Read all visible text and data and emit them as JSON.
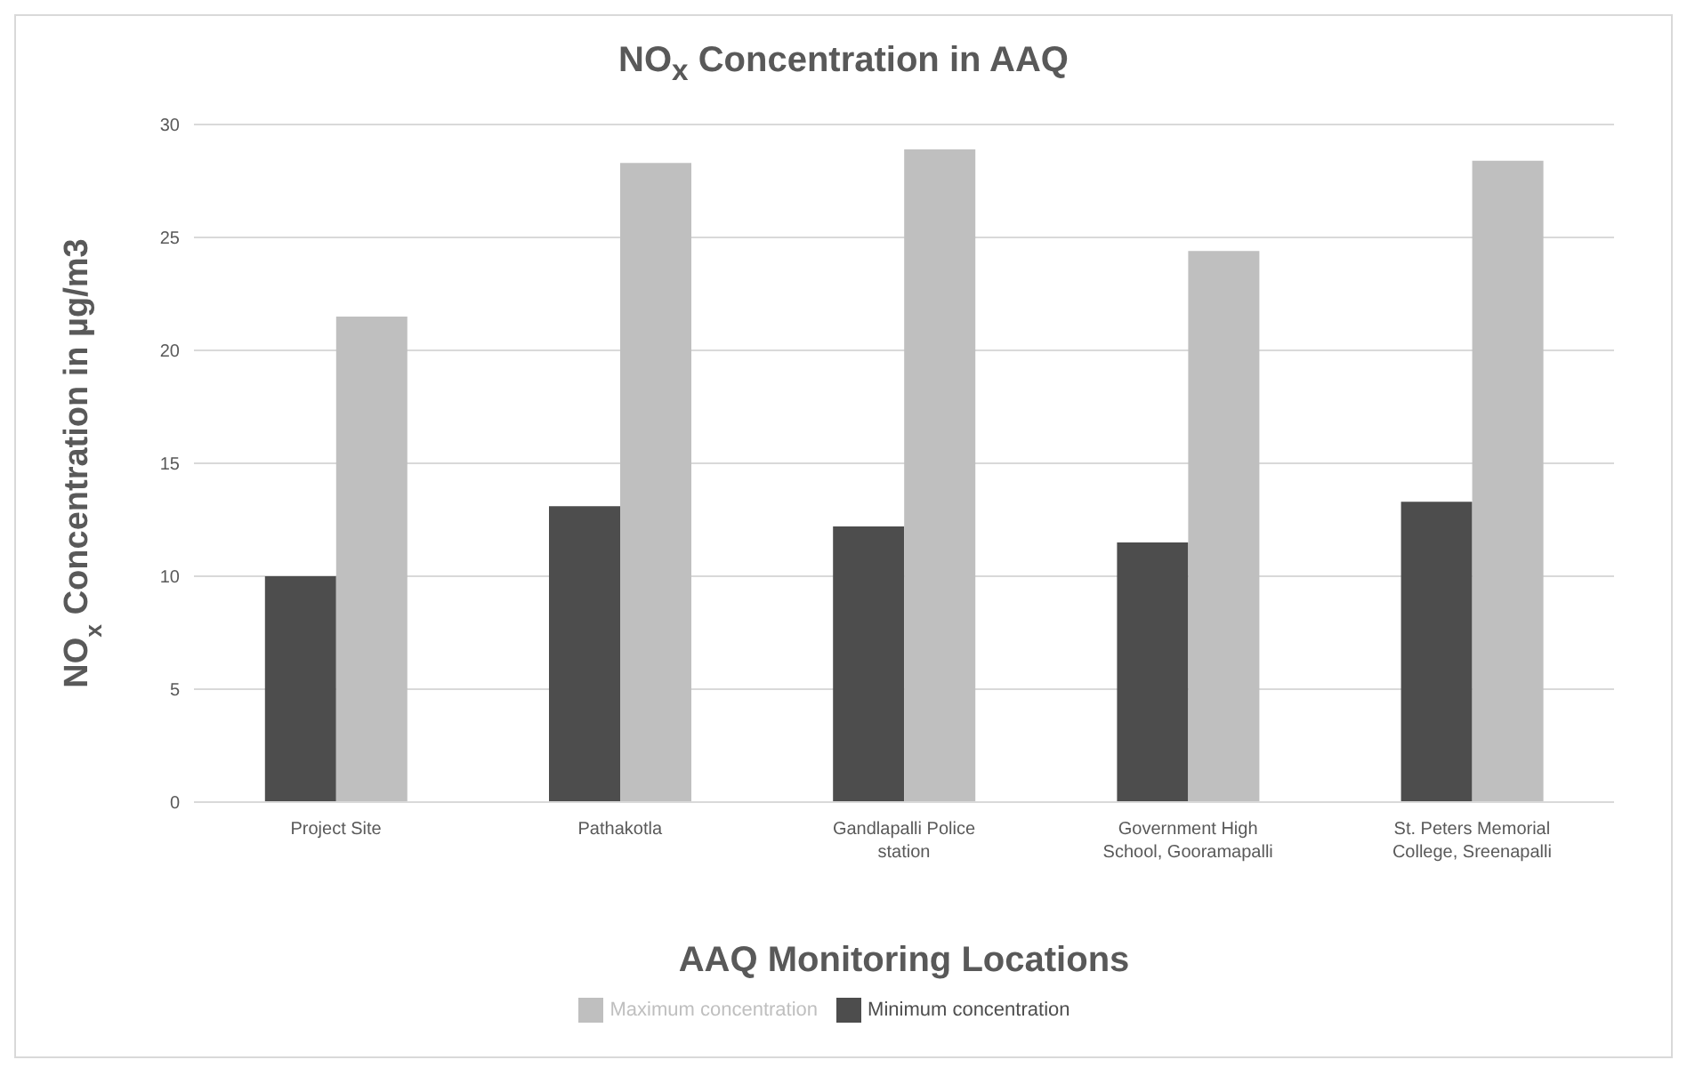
{
  "chart_data": {
    "type": "bar",
    "title": "NO$_{x}$ Concentration in AAQ",
    "xlabel": "AAQ Monitoring Locations",
    "ylabel": "NO$_{x}$ Concentration in µg/m3",
    "categories": [
      "Project Site",
      "Pathakotla",
      "Gandlapalli Police station",
      "Government High School, Gooramapalli",
      "St. Peters Memorial College, Sreenapalli"
    ],
    "series": [
      {
        "name": "Minimum concentration",
        "color": "#4d4d4d",
        "values": [
          10,
          13.1,
          12.2,
          11.5,
          13.3
        ]
      },
      {
        "name": "Maximum concentration",
        "color": "#bfbfbf",
        "values": [
          21.5,
          28.3,
          28.9,
          24.4,
          28.4
        ]
      }
    ],
    "ylim": [
      0,
      30
    ],
    "yticks": [
      0,
      5,
      10,
      15,
      20,
      25,
      30
    ],
    "grid": "y",
    "legend": "bottom"
  }
}
